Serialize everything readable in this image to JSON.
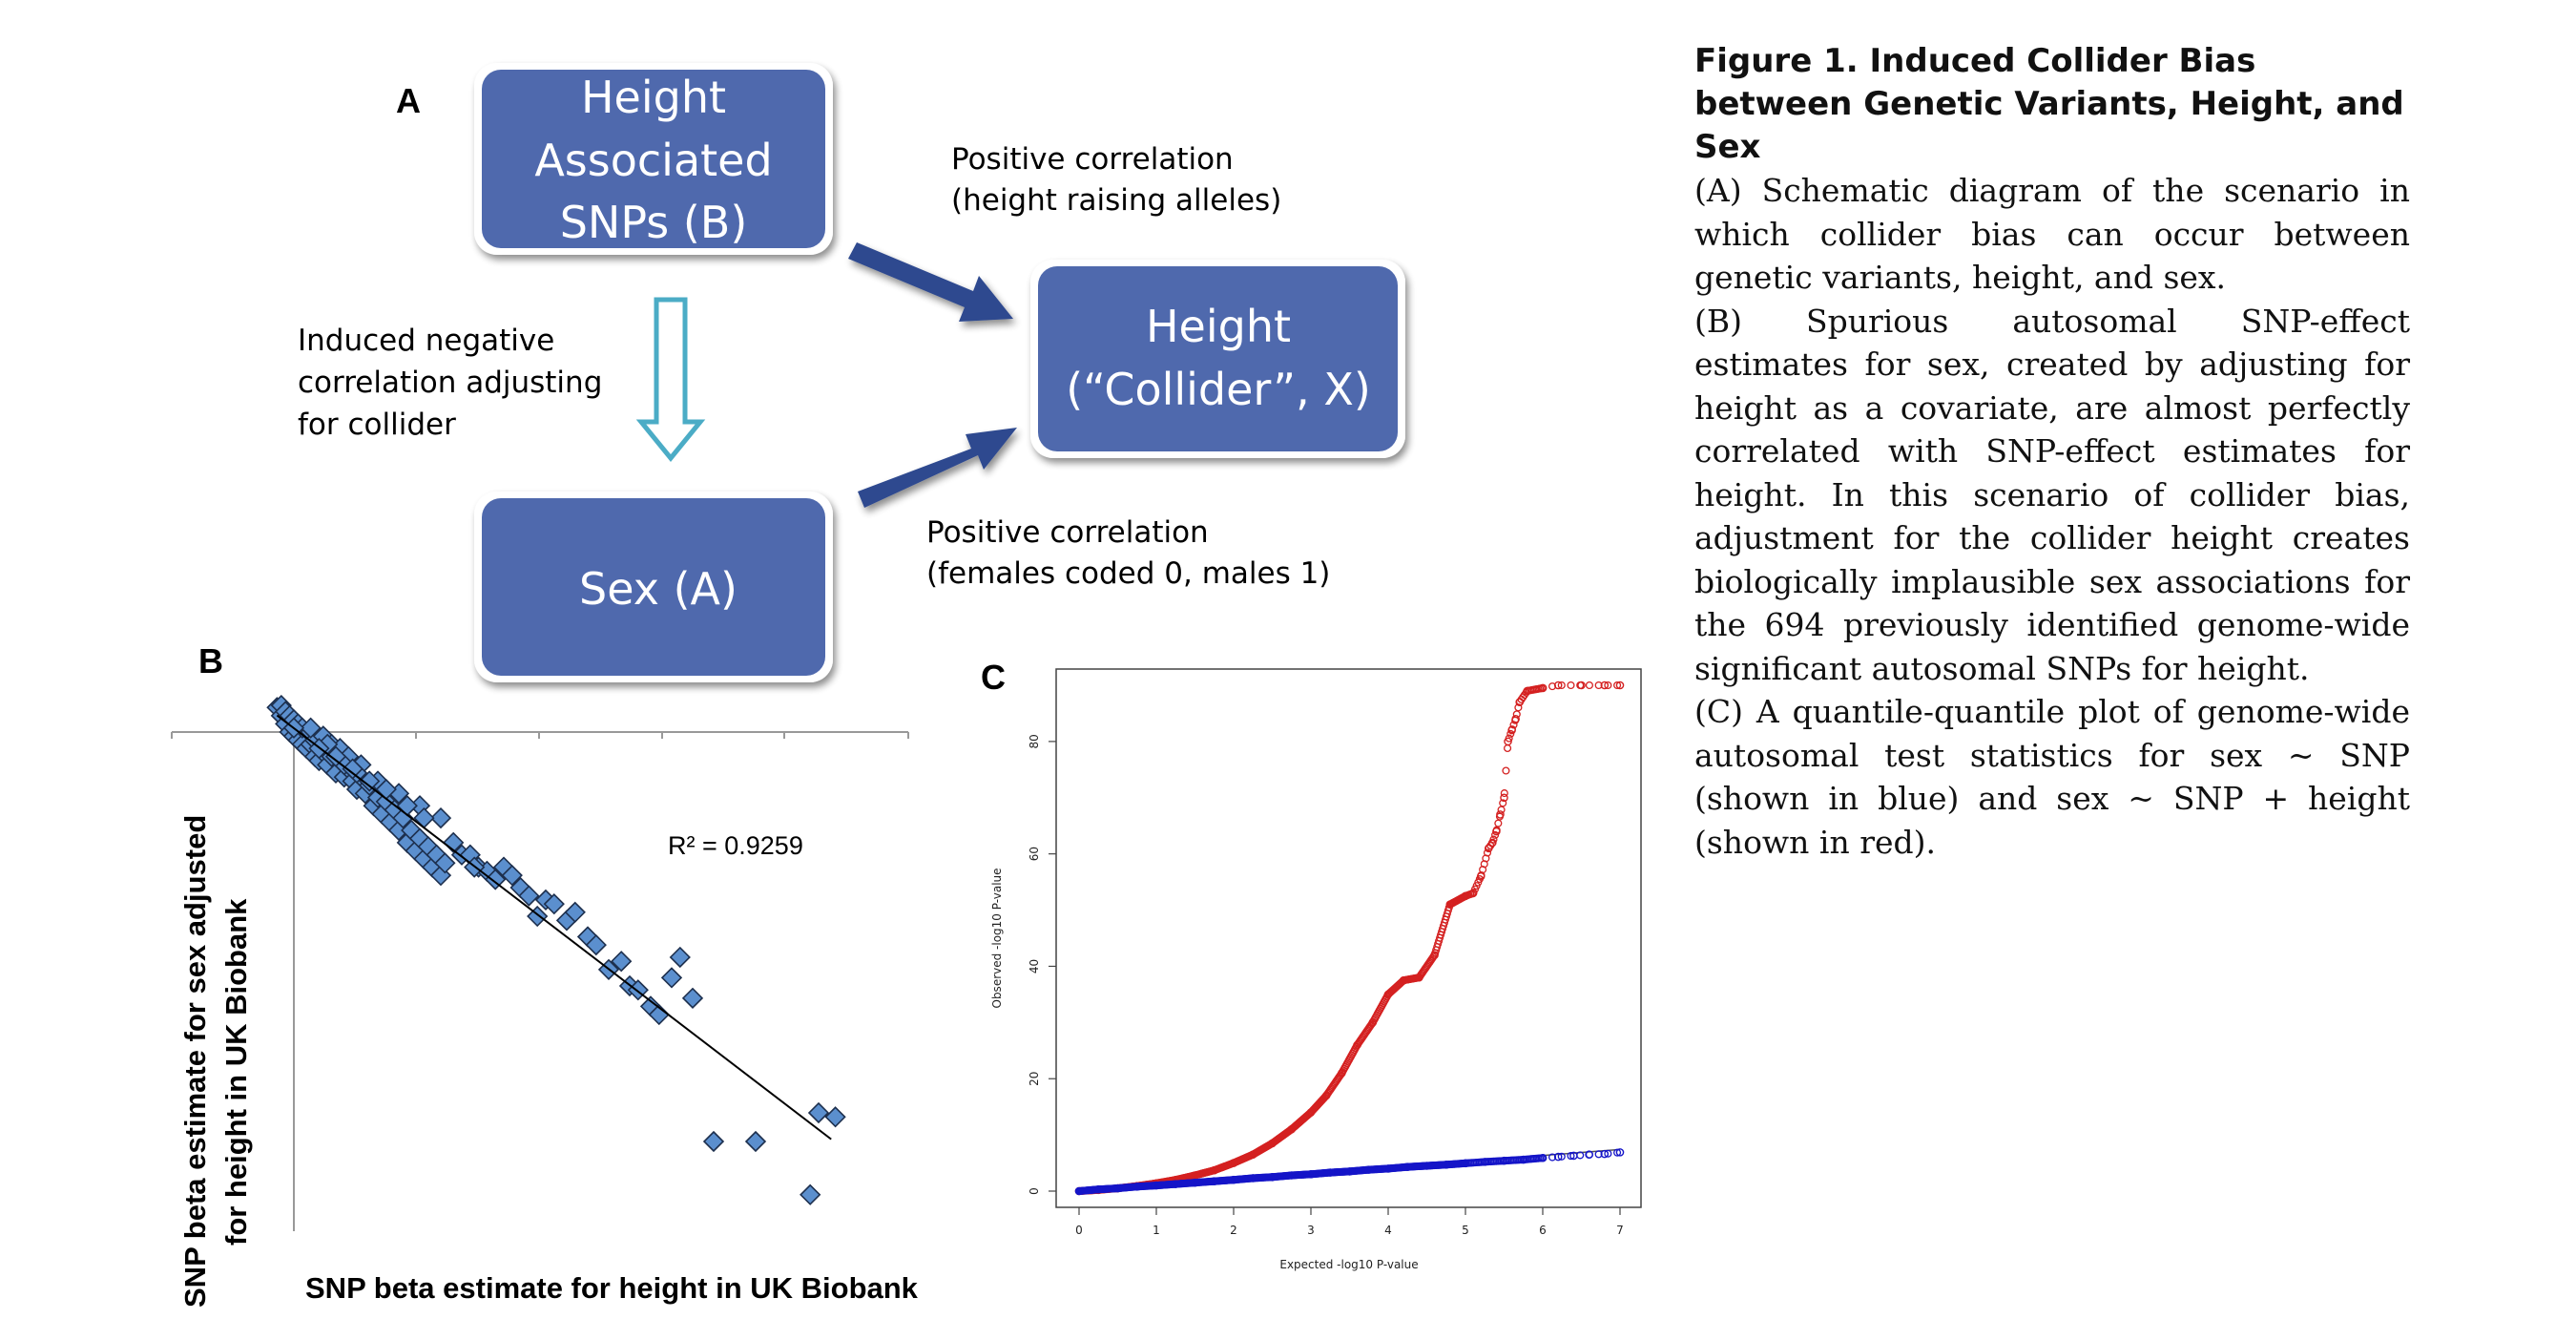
{
  "panel_a": {
    "letter": "A",
    "box_snps": [
      "Height",
      "Associated",
      "SNPs (B)"
    ],
    "box_height": [
      "Height",
      "(“Collider”, X)"
    ],
    "box_sex": [
      "Sex (A)"
    ],
    "label_pos_height": [
      "Positive correlation",
      "(height raising alleles)"
    ],
    "label_induced": [
      "Induced negative",
      "correlation adjusting",
      "for collider"
    ],
    "label_pos_sex": [
      "Positive correlation",
      "(females coded 0, males 1)"
    ],
    "colors": {
      "box_fill": "#4f69ad",
      "arrow_dark": "#2f4a8f",
      "arrow_hollow": "#4bacc6"
    }
  },
  "panel_b": {
    "letter": "B",
    "r_squared": "R² = 0.9259",
    "xlabel": "SNP beta estimate for height in UK Biobank",
    "ylabel_line1": "SNP beta estimate for sex adjusted",
    "ylabel_line2": "for height in UK Biobank",
    "marker_color": "#5b8fce"
  },
  "panel_c": {
    "letter": "C",
    "xlabel": "Expected -log10 P-value",
    "ylabel": "Observed -log10 P-value",
    "x_ticks": [
      "0",
      "1",
      "2",
      "3",
      "4",
      "5",
      "6",
      "7"
    ],
    "y_ticks": [
      "0",
      "20",
      "40",
      "60",
      "80"
    ],
    "colors": {
      "sex_snp": "#1515c8",
      "sex_snp_height": "#d42020"
    }
  },
  "caption": {
    "title": "Figure 1.   Induced Collider Bias between Genetic Variants, Height, and Sex",
    "para_a": "(A) Schematic diagram of the scenario in which collider bias can occur between genetic variants, height, and sex.",
    "para_b": "(B) Spurious autosomal SNP-effect estimates for sex, created by adjusting for height as a covariate, are almost perfectly correlated with SNP-effect estimates for height. In this scenario of collider bias, adjustment for the collider height creates biologically implausible sex associations for the 694 previously identified genome-wide significant autosomal SNPs for height.",
    "para_c": "(C) A quantile-quantile plot of genome-wide autosomal test statistics for sex ~ SNP (shown in blue) and sex ~ SNP + height (shown in red)."
  },
  "chart_data": [
    {
      "type": "scatter",
      "title": "",
      "xlabel": "SNP beta estimate for height in UK Biobank",
      "ylabel": "SNP beta estimate for sex adjusted for height in UK Biobank",
      "annotation": "R² = 0.9259",
      "grid": false,
      "trendline": "linear",
      "series": [
        {
          "x": [
            -0.004,
            -0.003,
            -0.003,
            -0.002,
            -0.002,
            -0.001,
            -0.001,
            0.0,
            0.0,
            0.001,
            0.001,
            0.002,
            0.002,
            0.003,
            0.004,
            0.004,
            0.005,
            0.005,
            0.006,
            0.007,
            0.007,
            0.008,
            0.009,
            0.009,
            0.01,
            0.011,
            0.011,
            0.012,
            0.013,
            0.013,
            0.014,
            0.015,
            0.016,
            0.016,
            0.017,
            0.018,
            0.019,
            0.02,
            0.021,
            0.022,
            0.023,
            0.024,
            0.025,
            0.026,
            0.027,
            0.028,
            0.029,
            0.03,
            0.031,
            0.032,
            0.033,
            0.034,
            0.035,
            0.036,
            0.02,
            0.025,
            0.03,
            0.035,
            0.004,
            0.008,
            0.012,
            0.015,
            0.018,
            0.0,
            0.006,
            0.01,
            0.014,
            0.022,
            0.027,
            0.031,
            0.038,
            0.04,
            0.042,
            0.044,
            0.046,
            0.048,
            0.05,
            0.052,
            0.054,
            0.056,
            0.06,
            0.062,
            0.065,
            0.067,
            0.07,
            0.072,
            0.043,
            0.058,
            0.075,
            0.078,
            0.08,
            0.082,
            0.085,
            0.087,
            0.09,
            0.092,
            0.095,
            0.1,
            0.11,
            0.123,
            0.125,
            0.129
          ],
          "y": [
            0.006,
            0.004,
            0.0065,
            0.002,
            0.005,
            0.0,
            0.004,
            -0.001,
            0.003,
            -0.002,
            0.002,
            -0.003,
            0.001,
            -0.004,
            -0.003,
            0.0,
            -0.006,
            -0.002,
            -0.007,
            -0.005,
            -0.001,
            -0.008,
            -0.006,
            -0.003,
            -0.01,
            -0.007,
            -0.004,
            -0.011,
            -0.009,
            -0.006,
            -0.012,
            -0.014,
            -0.011,
            -0.008,
            -0.015,
            -0.013,
            -0.018,
            -0.016,
            -0.02,
            -0.017,
            -0.022,
            -0.019,
            -0.024,
            -0.021,
            -0.027,
            -0.024,
            -0.029,
            -0.026,
            -0.031,
            -0.028,
            -0.033,
            -0.03,
            -0.035,
            -0.032,
            -0.012,
            -0.015,
            -0.018,
            -0.021,
            0.001,
            -0.003,
            -0.008,
            -0.01,
            -0.012,
            0.001,
            -0.004,
            -0.006,
            -0.009,
            -0.014,
            -0.018,
            -0.021,
            -0.027,
            -0.03,
            -0.03,
            -0.033,
            -0.034,
            -0.036,
            -0.033,
            -0.035,
            -0.038,
            -0.04,
            -0.041,
            -0.042,
            -0.046,
            -0.044,
            -0.05,
            -0.052,
            -0.033,
            -0.045,
            -0.058,
            -0.056,
            -0.062,
            -0.063,
            -0.067,
            -0.069,
            -0.06,
            -0.055,
            -0.065,
            -0.1,
            -0.1,
            -0.113,
            -0.093,
            -0.094
          ]
        }
      ]
    },
    {
      "type": "scatter",
      "title": "",
      "xlabel": "Expected -log10 P-value",
      "ylabel": "Observed -log10 P-value",
      "xlim": [
        0,
        7
      ],
      "ylim": [
        0,
        90
      ],
      "grid": false,
      "series": [
        {
          "name": "sex ~ SNP",
          "color": "#1515c8",
          "x": [
            0,
            0.25,
            0.5,
            0.75,
            1,
            1.25,
            1.5,
            1.75,
            2,
            2.25,
            2.5,
            2.75,
            3,
            3.25,
            3.5,
            3.75,
            4,
            4.25,
            4.5,
            4.75,
            5,
            5.25,
            5.5,
            5.75,
            6,
            6.2,
            6.4,
            6.6,
            6.8,
            7
          ],
          "y": [
            0,
            0.3,
            0.5,
            0.8,
            1,
            1.25,
            1.5,
            1.75,
            2,
            2.3,
            2.5,
            2.8,
            3,
            3.3,
            3.5,
            3.8,
            4,
            4.3,
            4.5,
            4.7,
            4.95,
            5.2,
            5.4,
            5.6,
            5.9,
            6.1,
            6.3,
            6.5,
            6.6,
            6.9
          ]
        },
        {
          "name": "sex ~ SNP + height",
          "color": "#d42020",
          "x": [
            0,
            0.25,
            0.5,
            0.75,
            1,
            1.25,
            1.5,
            1.75,
            2,
            2.25,
            2.5,
            2.75,
            3,
            3.2,
            3.4,
            3.6,
            3.8,
            4,
            4.2,
            4.4,
            4.6,
            4.8,
            5,
            5.1,
            5.2,
            5.3,
            5.35,
            5.4,
            5.45,
            5.5,
            5.55,
            5.6,
            5.65,
            5.7,
            5.8,
            6,
            6.2,
            6.5,
            6.8,
            7
          ],
          "y": [
            0,
            0.2,
            0.5,
            0.9,
            1.4,
            2,
            2.8,
            3.7,
            5,
            6.5,
            8.5,
            11,
            14,
            17,
            21,
            26,
            30,
            35,
            37.5,
            38,
            42,
            51,
            52.5,
            53,
            56,
            61,
            62,
            64,
            67,
            70,
            80,
            82,
            84,
            87,
            89,
            89.5,
            90,
            90,
            90,
            90
          ]
        }
      ]
    }
  ]
}
